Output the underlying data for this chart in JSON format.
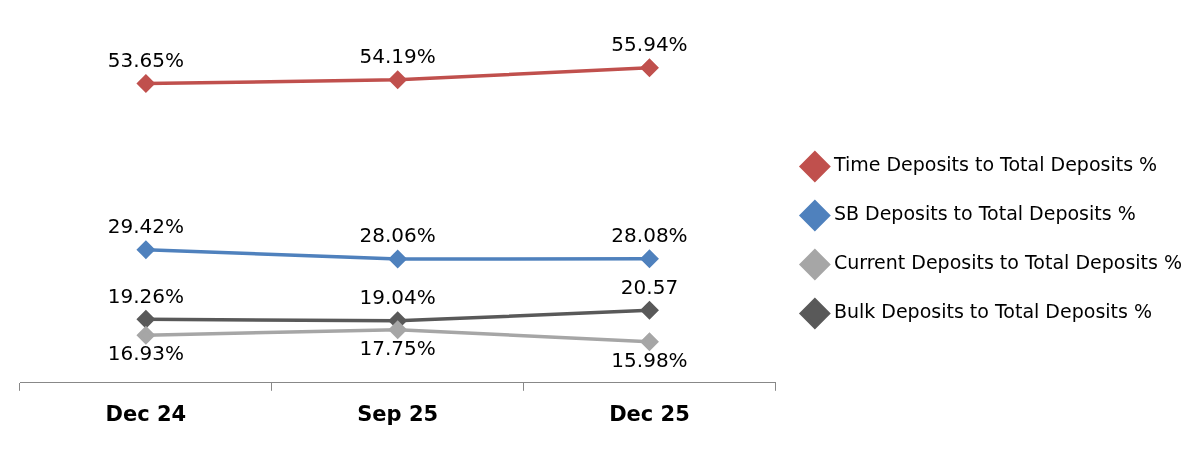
{
  "chart_data": {
    "type": "line",
    "categories": [
      "Dec 24",
      "Sep 25",
      "Dec 25"
    ],
    "marker": "diamond",
    "legend": "right",
    "grid": false,
    "series": [
      {
        "name": "Time Deposits to Total Deposits %",
        "color": "#c0504d",
        "values": [
          53.65,
          54.19,
          55.94
        ],
        "value_labels": [
          "53.65%",
          "54.19%",
          "55.94%"
        ]
      },
      {
        "name": "SB Deposits to Total Deposits %",
        "color": "#4f81bd",
        "values": [
          29.42,
          28.06,
          28.08
        ],
        "value_labels": [
          "29.42%",
          "28.06%",
          "28.08%"
        ]
      },
      {
        "name": "Current Deposits to Total Deposits %",
        "color": "#a6a6a6",
        "values": [
          16.93,
          17.75,
          15.98
        ],
        "value_labels": [
          "16.93%",
          "17.75%",
          "15.98%"
        ]
      },
      {
        "name": "Bulk Deposits to Total Deposits %",
        "color": "#595959",
        "values": [
          19.26,
          19.04,
          20.57
        ],
        "value_labels": [
          "19.26%",
          "19.04%",
          "20.57"
        ]
      }
    ]
  }
}
